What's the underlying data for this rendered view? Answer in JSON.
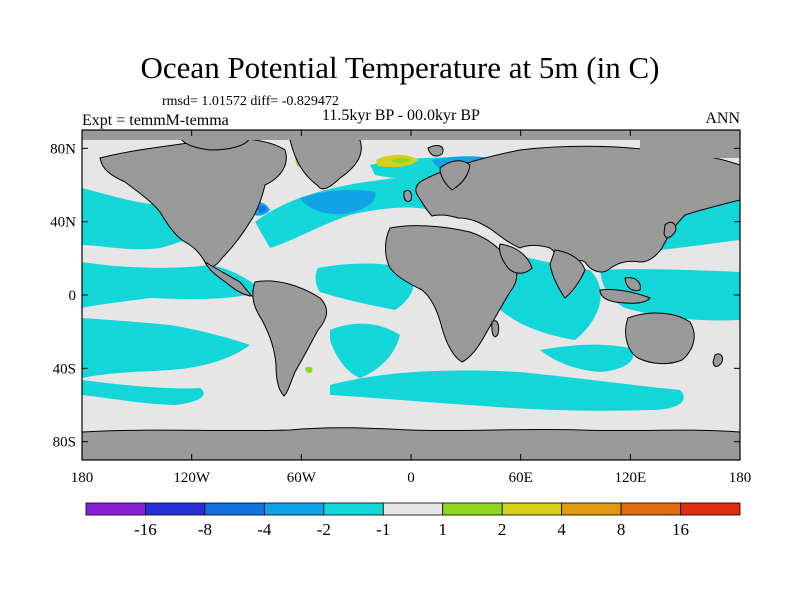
{
  "title": "Ocean Potential Temperature at 5m (in C)",
  "stats_text": "rmsd= 1.01572 diff= -0.829472",
  "experiment_label": "Expt = temmM-temma",
  "period_label": "11.5kyr BP - 00.0kyr BP",
  "season_label": "ANN",
  "map": {
    "projection": "cylindrical-equidistant",
    "lon_range": [
      -180,
      180
    ],
    "lat_range": [
      -90,
      90
    ],
    "land_color": "#999999",
    "ocean_default_color": "#e6e6e6",
    "x_tick_labels": [
      "180",
      "120W",
      "60W",
      "0",
      "60E",
      "120E",
      "180"
    ],
    "y_tick_labels": [
      "80N",
      "40N",
      "0",
      "40S",
      "80S"
    ]
  },
  "colorbar": {
    "colors": [
      "#8a20d8",
      "#2a2ed8",
      "#0f73e0",
      "#10a3e6",
      "#12d6d8",
      "#e6e6e6",
      "#8fd81f",
      "#d6d01a",
      "#e09a10",
      "#e06a10",
      "#e02c10"
    ],
    "labels": [
      "-16",
      "-8",
      "-4",
      "-2",
      "-1",
      "1",
      "2",
      "4",
      "8",
      "16"
    ]
  }
}
